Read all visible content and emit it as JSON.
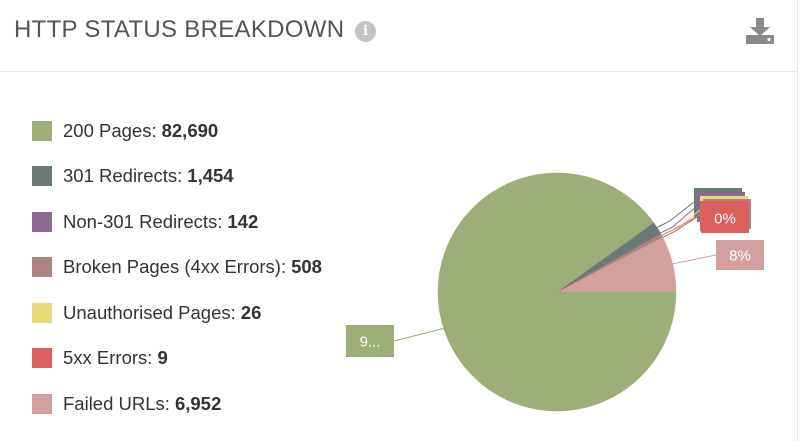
{
  "header": {
    "title": "HTTP STATUS BREAKDOWN",
    "info_glyph": "i",
    "info_icon": "info-circle-icon",
    "download_icon": "download-icon"
  },
  "chart_data": {
    "type": "pie",
    "title": "HTTP STATUS BREAKDOWN",
    "legend_position": "left",
    "categories": [
      "200 Pages",
      "301 Redirects",
      "Non-301 Redirects",
      "Broken Pages (4xx Errors)",
      "Unauthorised Pages",
      "5xx Errors",
      "Failed URLs"
    ],
    "values": [
      82690,
      1454,
      142,
      508,
      26,
      9,
      6952
    ],
    "colors": [
      "#9eae78",
      "#697a77",
      "#8c6b8e",
      "#ad8480",
      "#ecd97a",
      "#dc5f5f",
      "#d3a09f"
    ],
    "visible_slice_labels": [
      {
        "category": "200 Pages",
        "text": "9..."
      },
      {
        "category": "5xx Errors",
        "text": "0%"
      },
      {
        "category": "Failed URLs",
        "text": "8%"
      }
    ]
  },
  "legend": {
    "items": [
      {
        "label": "200 Pages:",
        "value": "82,690",
        "color": "#9eae78"
      },
      {
        "label": "301 Redirects:",
        "value": "1,454",
        "color": "#697a77"
      },
      {
        "label": "Non-301 Redirects:",
        "value": "142",
        "color": "#8c6b8e"
      },
      {
        "label": "Broken Pages (4xx Errors):",
        "value": "508",
        "color": "#ad8480"
      },
      {
        "label": "Unauthorised Pages:",
        "value": "26",
        "color": "#ecd97a"
      },
      {
        "label": "5xx Errors:",
        "value": "9",
        "color": "#dc5f5f"
      },
      {
        "label": "Failed URLs:",
        "value": "6,952",
        "color": "#d3a09f"
      }
    ]
  }
}
